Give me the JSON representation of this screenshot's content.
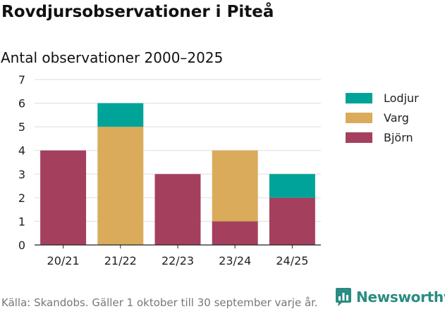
{
  "header": {
    "title": "Rovdjursobservationer i Piteå",
    "subtitle": "Antal observationer 2000–2025"
  },
  "footer": {
    "source": "Källa: Skandobs. Gäller 1 oktober till 30 september varje år.",
    "brand": "Newsworthy"
  },
  "colors": {
    "Lodjur": "#00a397",
    "Varg": "#d9ab5b",
    "Björn": "#a4405d",
    "brand": "#2a8c82"
  },
  "chart_data": {
    "type": "bar",
    "stacked": true,
    "categories": [
      "20/21",
      "21/22",
      "22/23",
      "23/24",
      "24/25"
    ],
    "series": [
      {
        "name": "Björn",
        "values": [
          4,
          0,
          3,
          1,
          2
        ]
      },
      {
        "name": "Varg",
        "values": [
          0,
          5,
          0,
          3,
          0
        ]
      },
      {
        "name": "Lodjur",
        "values": [
          0,
          1,
          0,
          0,
          1
        ]
      }
    ],
    "legend_order": [
      "Lodjur",
      "Varg",
      "Björn"
    ],
    "title": "Rovdjursobservationer i Piteå",
    "subtitle": "Antal observationer 2000–2025",
    "xlabel": "",
    "ylabel": "",
    "ylim": [
      0,
      7
    ],
    "yticks": [
      0,
      1,
      2,
      3,
      4,
      5,
      6,
      7
    ],
    "grid": true,
    "legend_position": "right"
  }
}
